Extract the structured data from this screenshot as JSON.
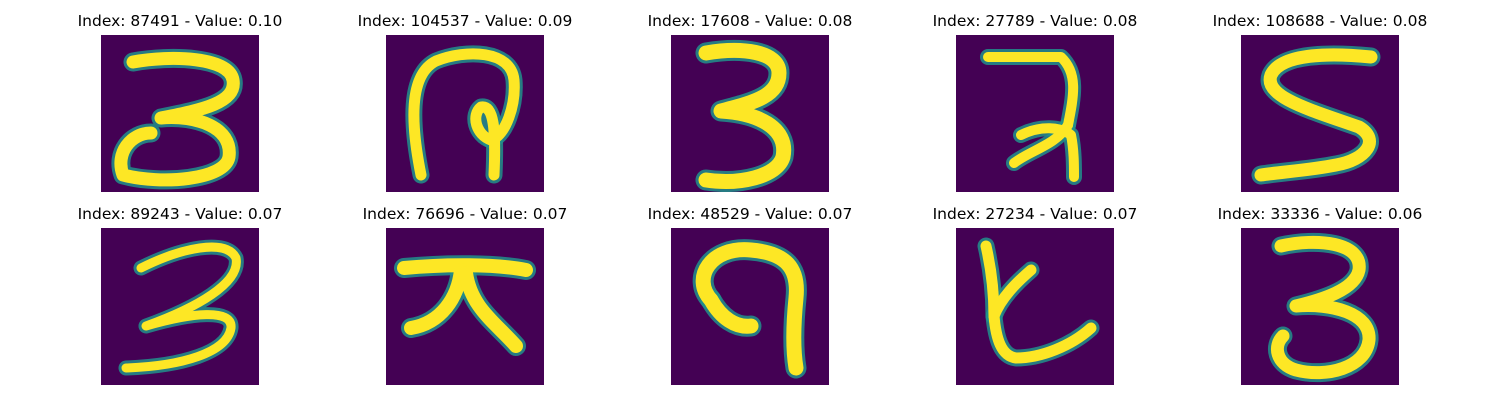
{
  "figure": {
    "colors": {
      "background": "#440154",
      "stroke": "#fde725",
      "edge": "#21918c"
    },
    "panels": [
      {
        "title": "Index: 87491 - Value: 0.10",
        "glyph": "three-loose"
      },
      {
        "title": "Index: 104537 - Value: 0.09",
        "glyph": "hook-loop"
      },
      {
        "title": "Index: 17608 - Value: 0.08",
        "glyph": "three-bold"
      },
      {
        "title": "Index: 27789 - Value: 0.08",
        "glyph": "seven-like"
      },
      {
        "title": "Index: 108688 - Value: 0.08",
        "glyph": "s-shape"
      },
      {
        "title": "Index: 89243 - Value: 0.07",
        "glyph": "three-thin"
      },
      {
        "title": "Index: 76696 - Value: 0.07",
        "glyph": "da-char"
      },
      {
        "title": "Index: 48529 - Value: 0.07",
        "glyph": "arch"
      },
      {
        "title": "Index: 27234 - Value: 0.07",
        "glyph": "ka-char"
      },
      {
        "title": "Index: 33336 - Value: 0.06",
        "glyph": "three-round"
      }
    ]
  }
}
